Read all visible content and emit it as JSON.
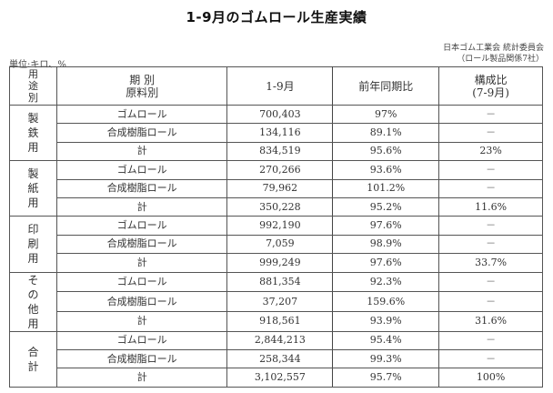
{
  "title": "1-9月のゴムロール生産実績",
  "source": {
    "line1": "日本ゴム工業会 統計委員会",
    "line2": "（ロール製品関係7社）"
  },
  "unit": "単位:キロ、%",
  "header": {
    "use_chars": [
      "用",
      "途",
      "別"
    ],
    "period_line1": "期 別",
    "period_line2": "原料別",
    "col_1_9": "1-9月",
    "col_yoy": "前年同期比",
    "col_share_line1": "構成比",
    "col_share_line2": "(7-9月)"
  },
  "groups": [
    {
      "use_chars": [
        "製",
        "鉄",
        "用"
      ],
      "rows": [
        {
          "material": "ゴムロール",
          "value": "700,403",
          "yoy": "97%",
          "share": "－"
        },
        {
          "material": "合成樹脂ロール",
          "value": "134,116",
          "yoy": "89.1%",
          "share": "－"
        },
        {
          "material": "計",
          "value": "834,519",
          "yoy": "95.6%",
          "share": "23%"
        }
      ]
    },
    {
      "use_chars": [
        "製",
        "紙",
        "用"
      ],
      "rows": [
        {
          "material": "ゴムロール",
          "value": "270,266",
          "yoy": "93.6%",
          "share": "－"
        },
        {
          "material": "合成樹脂ロール",
          "value": "79,962",
          "yoy": "101.2%",
          "share": "－"
        },
        {
          "material": "計",
          "value": "350,228",
          "yoy": "95.2%",
          "share": "11.6%"
        }
      ]
    },
    {
      "use_chars": [
        "印",
        "刷",
        "用"
      ],
      "rows": [
        {
          "material": "ゴムロール",
          "value": "992,190",
          "yoy": "97.6%",
          "share": "－"
        },
        {
          "material": "合成樹脂ロール",
          "value": "7,059",
          "yoy": "98.9%",
          "share": "－"
        },
        {
          "material": "計",
          "value": "999,249",
          "yoy": "97.6%",
          "share": "33.7%"
        }
      ]
    },
    {
      "use_chars": [
        "そ",
        "の",
        "他",
        "用"
      ],
      "rows": [
        {
          "material": "ゴムロール",
          "value": "881,354",
          "yoy": "92.3%",
          "share": "－"
        },
        {
          "material": "合成樹脂ロール",
          "value": "37,207",
          "yoy": "159.6%",
          "share": "－"
        },
        {
          "material": "計",
          "value": "918,561",
          "yoy": "93.9%",
          "share": "31.6%"
        }
      ]
    },
    {
      "use_chars": [
        "合",
        "計"
      ],
      "rows": [
        {
          "material": "ゴムロール",
          "value": "2,844,213",
          "yoy": "95.4%",
          "share": "－"
        },
        {
          "material": "合成樹脂ロール",
          "value": "258,344",
          "yoy": "99.3%",
          "share": "－"
        },
        {
          "material": "計",
          "value": "3,102,557",
          "yoy": "95.7%",
          "share": "100%"
        }
      ]
    }
  ]
}
